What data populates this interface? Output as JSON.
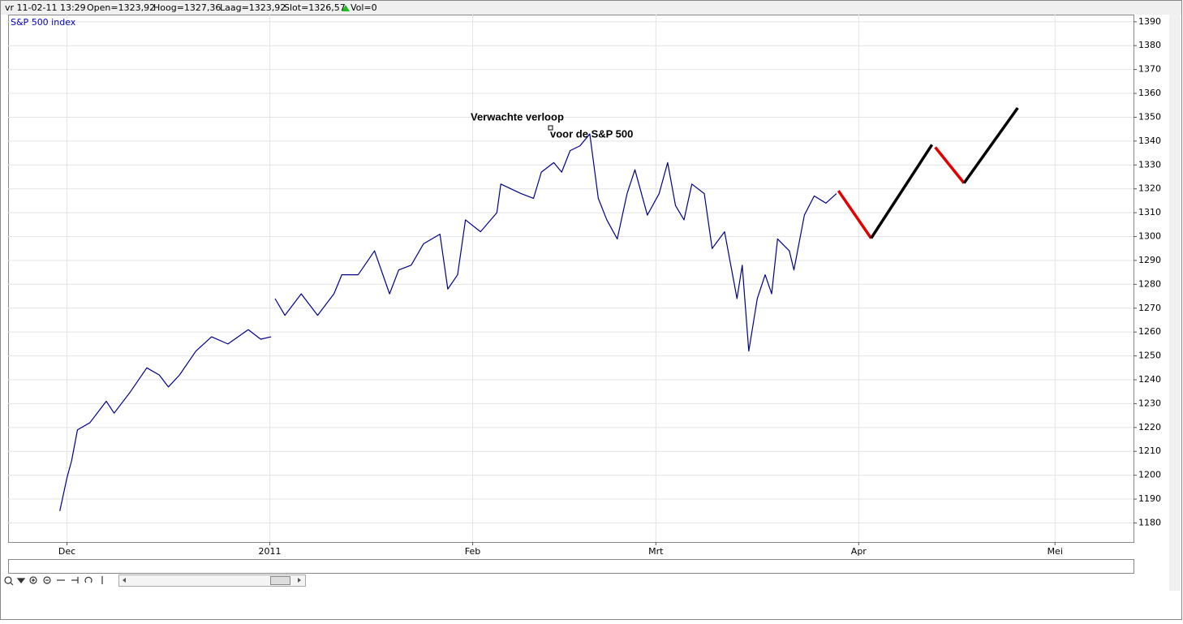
{
  "info": {
    "date": "vr 11-02-11 13:29",
    "open": "Open=1323,92",
    "high": "Hoog=1327,36",
    "low": "Laag=1323,92",
    "close": "Slot=1326,57",
    "volume": "Vol=0"
  },
  "chart_data": {
    "type": "line",
    "annotations": [
      "Verwachte verloop",
      "voor de S&P 500"
    ],
    "xlim": [
      -9,
      163
    ],
    "xticks": [
      {
        "value": 0,
        "label": "Dec"
      },
      {
        "value": 31,
        "label": "2011"
      },
      {
        "value": 62,
        "label": "Feb"
      },
      {
        "value": 90,
        "label": "Mrt"
      },
      {
        "value": 121,
        "label": "Apr"
      },
      {
        "value": 151,
        "label": "Mei"
      }
    ],
    "ylim": [
      1172,
      1393
    ],
    "yticks": [
      1180,
      1190,
      1200,
      1210,
      1220,
      1230,
      1240,
      1250,
      1260,
      1270,
      1280,
      1290,
      1300,
      1310,
      1320,
      1330,
      1340,
      1350,
      1360,
      1370,
      1380,
      1390
    ],
    "grid": true,
    "series": [
      {
        "name": "S&P 500 index",
        "color": "#00008b",
        "x": [
          -1.1,
          0,
          0.7,
          1.6,
          3.5,
          6.0,
          7.2,
          9.7,
          12.2,
          14.1,
          15.5,
          17.2,
          19.7,
          22.1,
          24.6,
          27.7,
          29.6,
          31.2,
          31.5,
          31.8,
          33.3,
          35.8,
          38.3,
          40.8,
          42.0,
          44.5,
          47.0,
          49.3,
          50.7,
          52.6,
          54.5,
          57.0,
          58.2,
          59.7,
          60.9,
          63.2,
          65.7,
          66.3,
          69.4,
          71.3,
          72.5,
          74.4,
          75.6,
          76.9,
          78.4,
          79.9,
          81.2,
          82.5,
          84.1,
          85.6,
          86.8,
          88.7,
          90.5,
          91.8,
          93.0,
          94.3,
          95.5,
          97.4,
          98.6,
          100.5,
          102.4,
          103.2,
          104.2,
          105.5,
          106.7,
          107.7,
          108.6,
          110.4,
          111.1,
          112.7,
          114.2,
          116.0,
          117.6
        ],
        "values": [
          1185,
          1199,
          1206,
          1219,
          1222,
          1231,
          1226,
          1235,
          1245,
          1242,
          1237,
          1242,
          1252,
          1258,
          1255,
          1261,
          1257,
          1258,
          null,
          1274,
          1267,
          1276,
          1267,
          1276,
          1284,
          1284,
          1294,
          1276,
          1286,
          1288,
          1297,
          1301,
          1278,
          1284,
          1307,
          1302,
          1310,
          1322,
          1318,
          1316,
          1327,
          1331,
          1327,
          1336,
          1338,
          1343,
          1316,
          1307,
          1299,
          1318,
          1328,
          1309,
          1318,
          1331,
          1313,
          1307,
          1322,
          1318,
          1295,
          1302,
          1274,
          1288,
          1252,
          1274,
          1284,
          1276,
          1299,
          1294,
          1286,
          1309,
          1317,
          1314,
          1318
        ]
      },
      {
        "color": "#e00000",
        "x": [
          117.9,
          122.9
        ],
        "values": [
          1319.2,
          1299.3
        ]
      },
      {
        "color": "#000000",
        "x": [
          122.9,
          132.2
        ],
        "values": [
          1299.3,
          1338.5
        ]
      },
      {
        "color": "#e00000",
        "x": [
          132.7,
          137.1
        ],
        "values": [
          1337.4,
          1322.4
        ]
      },
      {
        "color": "#000000",
        "x": [
          137.1,
          145.3
        ],
        "values": [
          1322.4,
          1353.9
        ]
      }
    ]
  }
}
